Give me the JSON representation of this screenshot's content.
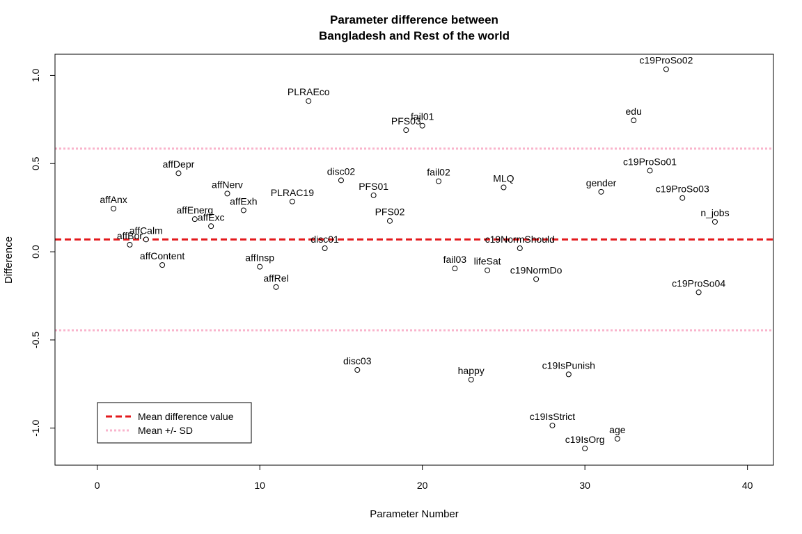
{
  "chart_data": {
    "type": "scatter",
    "title_lines": [
      "Parameter difference between",
      "Bangladesh and Rest of the world"
    ],
    "xlabel": "Parameter Number",
    "ylabel": "Difference",
    "xlim": [
      -2.6,
      41.6
    ],
    "ylim": [
      -1.21,
      1.12
    ],
    "xticks": [
      0,
      10,
      20,
      30,
      40
    ],
    "yticks": [
      -1.0,
      -0.5,
      0.0,
      0.5,
      1.0
    ],
    "ytick_labels": [
      "-1.0",
      "-0.5",
      "0.0",
      "0.5",
      "1.0"
    ],
    "mean": 0.07,
    "mean_plus_sd": 0.585,
    "mean_minus_sd": -0.445,
    "mean_color": "#e3191c",
    "sd_color": "#f9b4cc",
    "legend": {
      "position": "bottom-left",
      "entries": [
        {
          "label": "Mean difference value",
          "color": "#e3191c"
        },
        {
          "label": "Mean +/- SD",
          "color": "#f9b4cc"
        }
      ]
    },
    "points": [
      {
        "x": 1,
        "y": 0.245,
        "label": "affAnx"
      },
      {
        "x": 2,
        "y": 0.04,
        "label": "affBor"
      },
      {
        "x": 3,
        "y": 0.07,
        "label": "affCalm"
      },
      {
        "x": 4,
        "y": -0.075,
        "label": "affContent"
      },
      {
        "x": 5,
        "y": 0.445,
        "label": "affDepr"
      },
      {
        "x": 6,
        "y": 0.185,
        "label": "affEnerg"
      },
      {
        "x": 7,
        "y": 0.145,
        "label": "affExc"
      },
      {
        "x": 8,
        "y": 0.33,
        "label": "affNerv"
      },
      {
        "x": 9,
        "y": 0.235,
        "label": "affExh"
      },
      {
        "x": 10,
        "y": -0.085,
        "label": "affInsp"
      },
      {
        "x": 11,
        "y": -0.2,
        "label": "affRel"
      },
      {
        "x": 12,
        "y": 0.285,
        "label": "PLRAC19"
      },
      {
        "x": 13,
        "y": 0.855,
        "label": "PLRAEco"
      },
      {
        "x": 14,
        "y": 0.02,
        "label": "disc01"
      },
      {
        "x": 15,
        "y": 0.405,
        "label": "disc02"
      },
      {
        "x": 16,
        "y": -0.67,
        "label": "disc03"
      },
      {
        "x": 17,
        "y": 0.32,
        "label": "PFS01"
      },
      {
        "x": 18,
        "y": 0.175,
        "label": "PFS02"
      },
      {
        "x": 19,
        "y": 0.69,
        "label": "PFS03"
      },
      {
        "x": 20,
        "y": 0.715,
        "label": "fail01"
      },
      {
        "x": 21,
        "y": 0.4,
        "label": "fail02"
      },
      {
        "x": 22,
        "y": -0.095,
        "label": "fail03"
      },
      {
        "x": 23,
        "y": -0.725,
        "label": "happy"
      },
      {
        "x": 24,
        "y": -0.105,
        "label": "lifeSat"
      },
      {
        "x": 25,
        "y": 0.365,
        "label": "MLQ"
      },
      {
        "x": 26,
        "y": 0.02,
        "label": "c19NormShould"
      },
      {
        "x": 27,
        "y": -0.155,
        "label": "c19NormDo"
      },
      {
        "x": 28,
        "y": -0.985,
        "label": "c19IsStrict"
      },
      {
        "x": 29,
        "y": -0.695,
        "label": "c19IsPunish"
      },
      {
        "x": 30,
        "y": -1.115,
        "label": "c19IsOrg"
      },
      {
        "x": 31,
        "y": 0.34,
        "label": "gender"
      },
      {
        "x": 32,
        "y": -1.06,
        "label": "age"
      },
      {
        "x": 33,
        "y": 0.745,
        "label": "edu"
      },
      {
        "x": 34,
        "y": 0.46,
        "label": "c19ProSo01"
      },
      {
        "x": 35,
        "y": 1.035,
        "label": "c19ProSo02"
      },
      {
        "x": 36,
        "y": 0.305,
        "label": "c19ProSo03"
      },
      {
        "x": 37,
        "y": -0.23,
        "label": "c19ProSo04"
      },
      {
        "x": 38,
        "y": 0.17,
        "label": "n_jobs"
      }
    ]
  }
}
